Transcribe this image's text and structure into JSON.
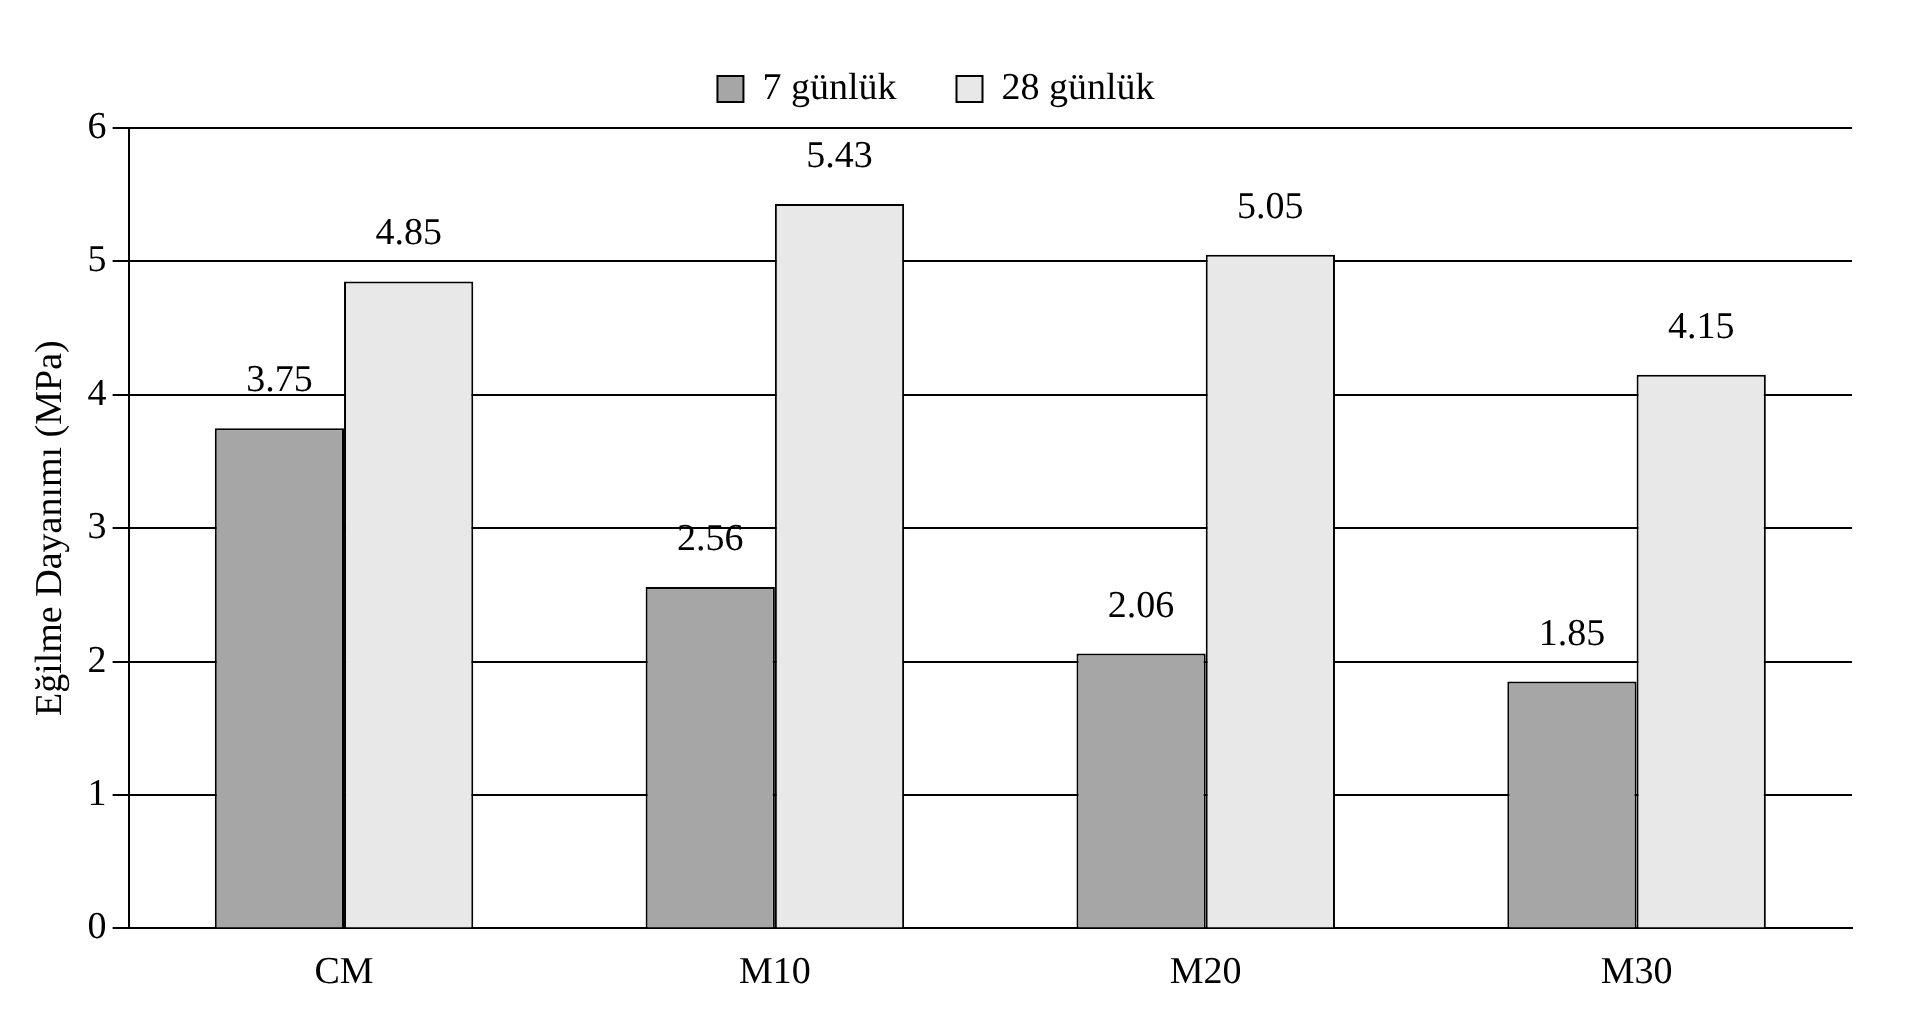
{
  "chart_data": {
    "type": "bar",
    "ylabel": "Eğilme Dayanımı (MPa)",
    "categories": [
      "CM",
      "M10",
      "M20",
      "M30"
    ],
    "series": [
      {
        "name": "7 günlük",
        "color": "#a6a6a6",
        "values": [
          3.75,
          2.56,
          2.06,
          1.85
        ]
      },
      {
        "name": "28 günlük",
        "color": "#e8e8e8",
        "values": [
          4.85,
          5.43,
          5.05,
          4.15
        ]
      }
    ],
    "ylim": [
      0,
      6
    ],
    "yticks": [
      0,
      1,
      2,
      3,
      4,
      5,
      6
    ],
    "grid": "y",
    "legend": "top",
    "data_labels": true
  }
}
